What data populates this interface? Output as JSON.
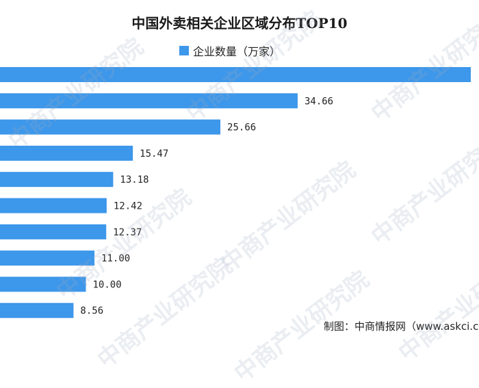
{
  "title": "中国外卖相关企业区域分布TOP10",
  "watermark": "中商产业研究院",
  "source": "制图：中商情报网（www.askci.com）",
  "colors": {
    "bar": "#3d97ea"
  },
  "chart_data": {
    "type": "bar",
    "orientation": "horizontal",
    "title": "中国外卖相关企业区域分布TOP10",
    "series": [
      {
        "name": "企业数量（万家）",
        "values": [
          55.0,
          34.66,
          25.66,
          15.47,
          13.18,
          12.42,
          12.37,
          11.0,
          10.0,
          8.56
        ]
      }
    ],
    "value_labels": [
      "",
      "34.66",
      "25.66",
      "15.47",
      "13.18",
      "12.42",
      "12.37",
      "11.00",
      "10.00",
      "8.56"
    ],
    "grid": false,
    "legend": "top-center"
  }
}
